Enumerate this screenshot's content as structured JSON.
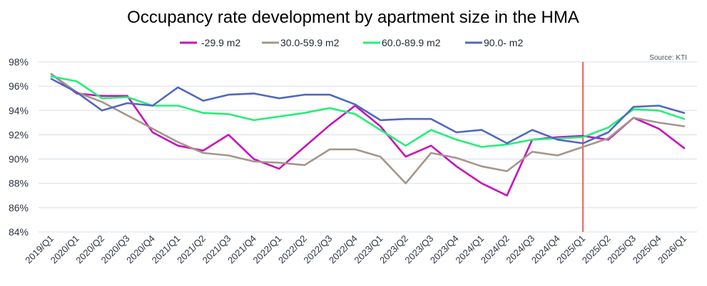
{
  "chart_data": {
    "type": "line",
    "title": "Occupancy rate development by apartment size in the HMA",
    "source": "Source: KTI",
    "xlabel": "",
    "ylabel": "",
    "ylim": [
      84,
      98
    ],
    "yticks": [
      84,
      86,
      88,
      90,
      92,
      94,
      96,
      98
    ],
    "ytick_labels": [
      "84%",
      "86%",
      "88%",
      "90%",
      "92%",
      "94%",
      "96%",
      "98%"
    ],
    "grid": true,
    "legend_position": "top-center",
    "categories": [
      "2019/Q1",
      "2020/Q1",
      "2020/Q2",
      "2020/Q3",
      "2020/Q4",
      "2021/Q1",
      "2021/Q2",
      "2021/Q3",
      "2021/Q4",
      "2022/Q1",
      "2022/Q2",
      "2022/Q3",
      "2022/Q4",
      "2023/Q1",
      "2023/Q2",
      "2023/Q3",
      "2023/Q4",
      "2024/Q1",
      "2024/Q2",
      "2024/Q3",
      "2024/Q4",
      "2025/Q1",
      "2025/Q2",
      "2025/Q3",
      "2025/Q4",
      "2026/Q1"
    ],
    "series": [
      {
        "name": "-29.9 m2",
        "color": "#c80fbe",
        "values": [
          97.0,
          95.4,
          95.2,
          95.2,
          92.2,
          91.1,
          90.7,
          92.0,
          90.0,
          89.2,
          91.0,
          92.8,
          94.4,
          92.7,
          90.2,
          91.1,
          89.4,
          88.0,
          87.0,
          91.6,
          91.8,
          91.9,
          91.6,
          93.4,
          92.5,
          90.9
        ]
      },
      {
        "name": "30.0-59.9 m2",
        "color": "#a5968a",
        "values": [
          97.0,
          95.5,
          94.7,
          93.6,
          92.5,
          91.4,
          90.5,
          90.3,
          89.8,
          89.7,
          89.5,
          90.8,
          90.8,
          90.2,
          88.0,
          90.5,
          90.1,
          89.4,
          89.0,
          90.6,
          90.3,
          91.0,
          91.7,
          93.4,
          93.0,
          92.7
        ]
      },
      {
        "name": "60.0-89.9 m2",
        "color": "#22f076",
        "values": [
          96.8,
          96.4,
          95.0,
          95.1,
          94.4,
          94.4,
          93.8,
          93.7,
          93.2,
          93.5,
          93.8,
          94.2,
          93.7,
          92.4,
          91.1,
          92.4,
          91.6,
          91.0,
          91.2,
          91.6,
          91.7,
          91.8,
          92.6,
          94.1,
          94.0,
          93.3
        ]
      },
      {
        "name": "90.0- m2",
        "color": "#5068c0",
        "values": [
          96.6,
          95.5,
          94.0,
          94.6,
          94.4,
          95.9,
          94.8,
          95.3,
          95.4,
          95.0,
          95.3,
          95.3,
          94.5,
          93.2,
          93.3,
          93.3,
          92.2,
          92.4,
          91.3,
          92.4,
          91.6,
          91.3,
          92.2,
          94.3,
          94.4,
          93.8
        ]
      }
    ],
    "reference_line": {
      "category": "2025/Q1",
      "color": "#e8332e"
    }
  }
}
